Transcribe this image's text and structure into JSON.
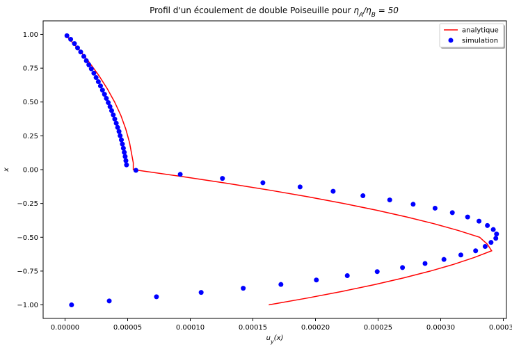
{
  "chart_data": {
    "type": "line",
    "title_prefix": "Profil d'un écoulement de double Poiseuille pour ",
    "title_math": "η_A/η_B = 50",
    "xlabel": "u_y(x)",
    "ylabel": "x",
    "xlim": [
      -1.75e-05,
      0.0003525
    ],
    "ylim": [
      -1.1,
      1.1
    ],
    "x_ticks": [
      0.0,
      5e-05,
      0.0001,
      0.00015,
      0.0002,
      0.00025,
      0.0003,
      0.00035
    ],
    "x_tick_labels": [
      "0.00000",
      "0.00005",
      "0.00010",
      "0.00015",
      "0.00020",
      "0.00025",
      "0.00030",
      "0.00035"
    ],
    "y_ticks": [
      -1.0,
      -0.75,
      -0.5,
      -0.25,
      0.0,
      0.25,
      0.5,
      0.75,
      1.0
    ],
    "y_tick_labels": [
      "−1.00",
      "−0.75",
      "−0.50",
      "−0.25",
      "0.00",
      "0.25",
      "0.50",
      "0.75",
      "1.00"
    ],
    "legend_position": "upper-right",
    "colors": {
      "analytique": "#ff0000",
      "simulation": "#0000ff"
    },
    "series": [
      {
        "name": "analytique",
        "style": "line",
        "points": [
          [
            0.0,
            1.0
          ],
          [
            9.9e-06,
            0.9
          ],
          [
            1.88e-05,
            0.8
          ],
          [
            2.67e-05,
            0.7
          ],
          [
            3.36e-05,
            0.6
          ],
          [
            3.96e-05,
            0.5
          ],
          [
            4.46e-05,
            0.4
          ],
          [
            4.85e-05,
            0.3
          ],
          [
            5.15e-05,
            0.2
          ],
          [
            5.35e-05,
            0.1
          ],
          [
            5.45e-05,
            0.05
          ],
          [
            5.45e-05,
            0.0
          ],
          [
            9.28e-05,
            -0.05
          ],
          [
            0.0001287,
            -0.1
          ],
          [
            0.0001623,
            -0.15
          ],
          [
            0.0001935,
            -0.2
          ],
          [
            0.0002223,
            -0.25
          ],
          [
            0.0002488,
            -0.3
          ],
          [
            0.0002729,
            -0.35
          ],
          [
            0.0002947,
            -0.4
          ],
          [
            0.0003141,
            -0.45
          ],
          [
            0.0003311,
            -0.5
          ],
          [
            0.0003371,
            -0.55
          ],
          [
            0.0003407,
            -0.6
          ],
          [
            0.0003267,
            -0.65
          ],
          [
            0.0003104,
            -0.7
          ],
          [
            0.0002917,
            -0.75
          ],
          [
            0.0002706,
            -0.8
          ],
          [
            0.0002472,
            -0.85
          ],
          [
            0.0002214,
            -0.9
          ],
          [
            0.0001932,
            -0.95
          ],
          [
            0.0001627,
            -1.0
          ]
        ]
      },
      {
        "name": "simulation",
        "style": "markers",
        "points": [
          [
            1.5e-06,
            0.99
          ],
          [
            4.5e-06,
            0.964
          ],
          [
            7.5e-06,
            0.932
          ],
          [
            1e-05,
            0.9
          ],
          [
            1.25e-05,
            0.87
          ],
          [
            1.5e-05,
            0.837
          ],
          [
            1.7e-05,
            0.805
          ],
          [
            1.9e-05,
            0.775
          ],
          [
            2.1e-05,
            0.745
          ],
          [
            2.3e-05,
            0.713
          ],
          [
            2.48e-05,
            0.681
          ],
          [
            2.66e-05,
            0.65
          ],
          [
            2.83e-05,
            0.619
          ],
          [
            2.99e-05,
            0.588
          ],
          [
            3.15e-05,
            0.557
          ],
          [
            3.3e-05,
            0.527
          ],
          [
            3.45e-05,
            0.496
          ],
          [
            3.59e-05,
            0.466
          ],
          [
            3.72e-05,
            0.436
          ],
          [
            3.85e-05,
            0.405
          ],
          [
            3.97e-05,
            0.374
          ],
          [
            4.09e-05,
            0.343
          ],
          [
            4.2e-05,
            0.312
          ],
          [
            4.31e-05,
            0.282
          ],
          [
            4.4e-05,
            0.251
          ],
          [
            4.5e-05,
            0.22
          ],
          [
            4.58e-05,
            0.189
          ],
          [
            4.66e-05,
            0.158
          ],
          [
            4.73e-05,
            0.128
          ],
          [
            4.8e-05,
            0.097
          ],
          [
            4.86e-05,
            0.066
          ],
          [
            4.91e-05,
            0.035
          ],
          [
            5.66e-05,
            -0.005
          ],
          [
            9.2e-05,
            -0.035
          ],
          [
            0.0001257,
            -0.065
          ],
          [
            0.000158,
            -0.097
          ],
          [
            0.0001877,
            -0.128
          ],
          [
            0.0002141,
            -0.16
          ],
          [
            0.0002379,
            -0.193
          ],
          [
            0.0002593,
            -0.224
          ],
          [
            0.000278,
            -0.256
          ],
          [
            0.0002955,
            -0.285
          ],
          [
            0.0003093,
            -0.318
          ],
          [
            0.0003215,
            -0.35
          ],
          [
            0.0003306,
            -0.381
          ],
          [
            0.0003373,
            -0.413
          ],
          [
            0.000342,
            -0.443
          ],
          [
            0.0003446,
            -0.476
          ],
          [
            0.000344,
            -0.508
          ],
          [
            0.0003402,
            -0.538
          ],
          [
            0.0003355,
            -0.568
          ],
          [
            0.0003279,
            -0.6
          ],
          [
            0.0003161,
            -0.631
          ],
          [
            0.0003026,
            -0.664
          ],
          [
            0.0002875,
            -0.694
          ],
          [
            0.0002695,
            -0.724
          ],
          [
            0.0002493,
            -0.754
          ],
          [
            0.0002254,
            -0.784
          ],
          [
            0.0002007,
            -0.816
          ],
          [
            0.0001724,
            -0.849
          ],
          [
            0.0001423,
            -0.877
          ],
          [
            0.0001087,
            -0.908
          ],
          [
            7.3e-05,
            -0.94
          ],
          [
            3.53e-05,
            -0.971
          ],
          [
            5.2e-06,
            -1.0
          ]
        ]
      }
    ]
  }
}
